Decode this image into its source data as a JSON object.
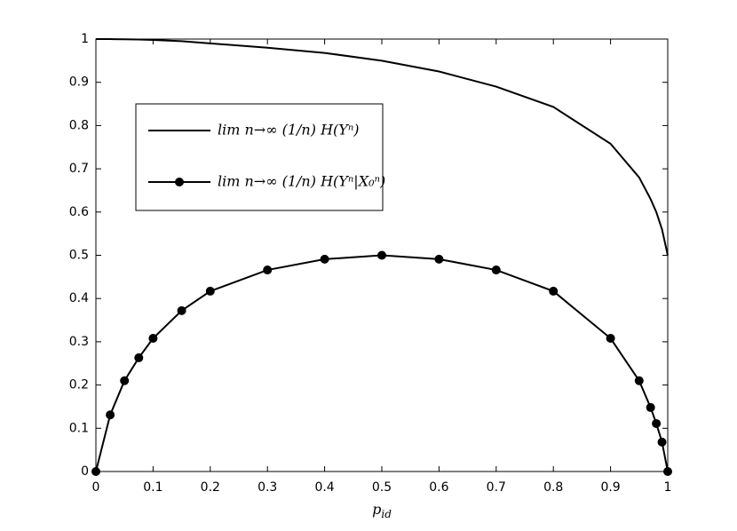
{
  "chart_data": {
    "type": "line",
    "xlabel": {
      "base": "p",
      "sub": "id"
    },
    "x": [
      0,
      0.025,
      0.05,
      0.075,
      0.1,
      0.15,
      0.2,
      0.3,
      0.4,
      0.5,
      0.6,
      0.7,
      0.8,
      0.9,
      0.95,
      0.97,
      0.98,
      0.99,
      1
    ],
    "series": [
      {
        "name": "lim n→∞ (1/n) H(Yⁿ)",
        "color": "#000000",
        "values": [
          1,
          0.9999,
          0.9996,
          0.999,
          0.998,
          0.995,
          0.99,
          0.98,
          0.968,
          0.95,
          0.925,
          0.89,
          0.843,
          0.758,
          0.68,
          0.63,
          0.6,
          0.56,
          0.5
        ]
      },
      {
        "name": "lim n→∞ (1/n) H(Yⁿ|X₀ⁿ)",
        "color": "#000000",
        "marker": "circle",
        "values": [
          0,
          0.131,
          0.21,
          0.263,
          0.308,
          0.372,
          0.417,
          0.466,
          0.491,
          0.5,
          0.491,
          0.466,
          0.417,
          0.308,
          0.21,
          0.148,
          0.111,
          0.068,
          0
        ]
      }
    ],
    "xlim": [
      0,
      1
    ],
    "xticks": [
      0,
      0.1,
      0.2,
      0.3,
      0.4,
      0.5,
      0.6,
      0.7,
      0.8,
      0.9,
      1
    ],
    "ylim": [
      0,
      1
    ],
    "yticks": [
      0,
      0.1,
      0.2,
      0.3,
      0.4,
      0.5,
      0.6,
      0.7,
      0.8,
      0.9,
      1
    ],
    "grid": false,
    "legend": "upper left"
  }
}
